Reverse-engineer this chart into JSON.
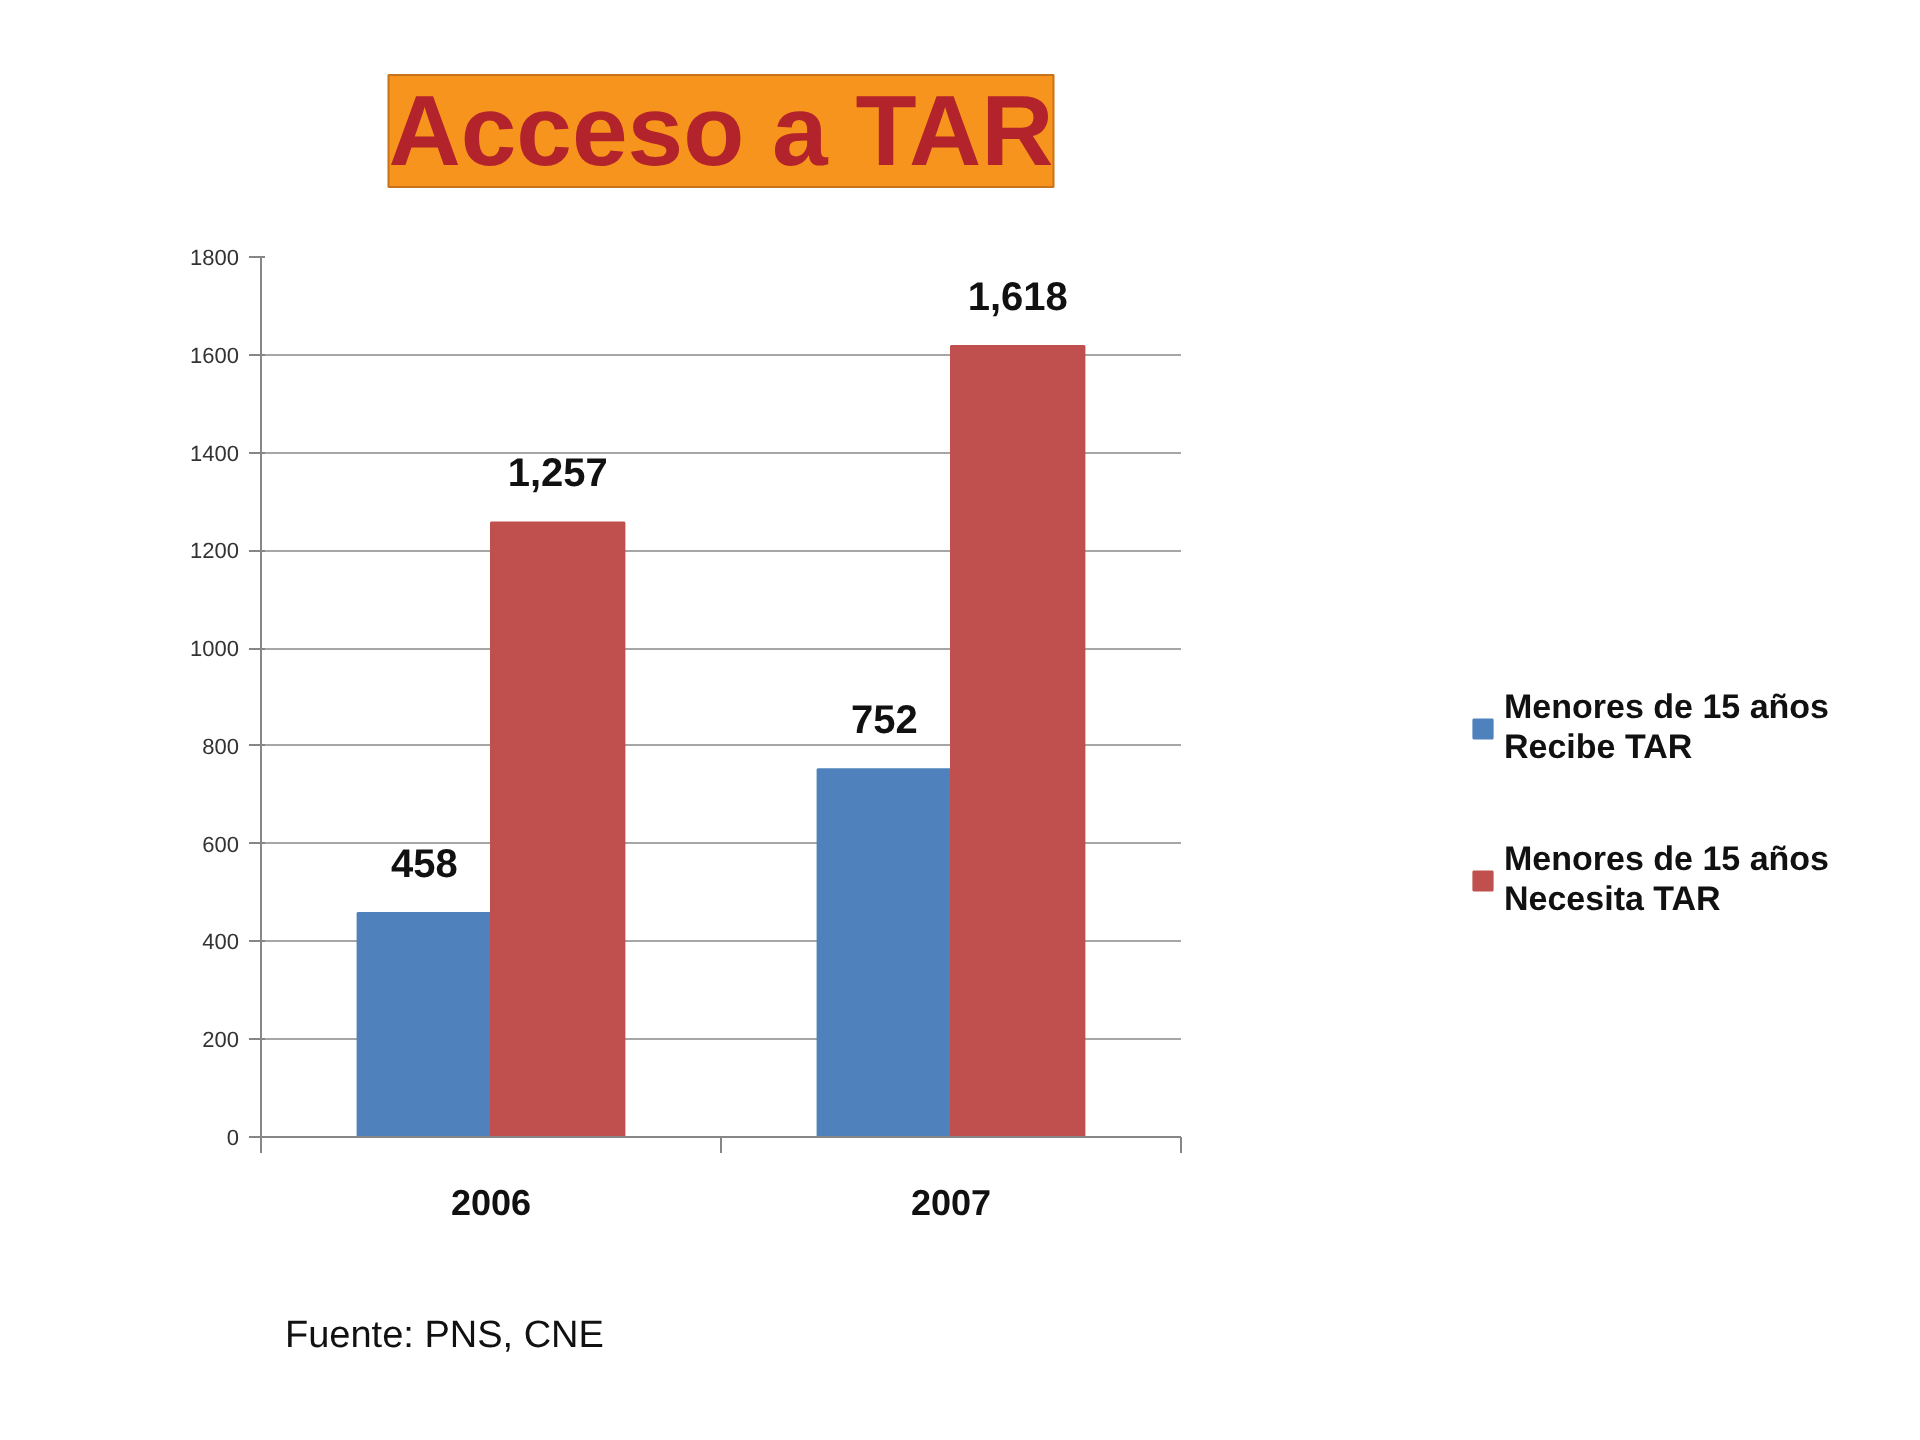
{
  "chart_data": {
    "type": "bar",
    "title": "Acceso a TAR",
    "categories": [
      "2006",
      "2007"
    ],
    "series": [
      {
        "name": "Menores de 15 años Recibe TAR",
        "color": "#4f81bd",
        "values": [
          458,
          752
        ],
        "value_labels": [
          "458",
          "752"
        ]
      },
      {
        "name": "Menores de 15 años Necesita TAR",
        "color": "#c0504d",
        "values": [
          1257,
          1618
        ],
        "value_labels": [
          "1,257",
          "1,618"
        ]
      }
    ],
    "ylim": [
      0,
      1800
    ],
    "yticks": [
      0,
      200,
      400,
      600,
      800,
      1000,
      1200,
      1400,
      1600,
      1800
    ],
    "grid": "y",
    "legend": "right",
    "annotations": [
      "Fuente: PNS, CNE"
    ]
  }
}
